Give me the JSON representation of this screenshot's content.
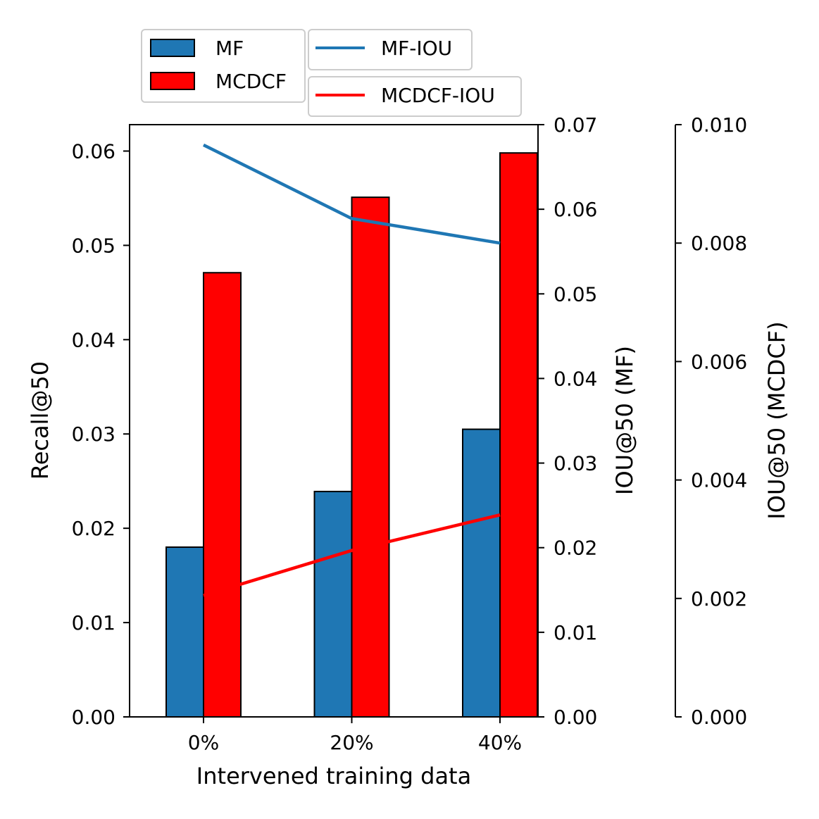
{
  "chart_data": {
    "type": "bar",
    "categories": [
      "0%",
      "20%",
      "40%"
    ],
    "xlabel": "Intervened training data",
    "bar_series": [
      {
        "name": "MF",
        "axis": "left",
        "color": "#1f77b4",
        "values": [
          0.018,
          0.0239,
          0.0305
        ]
      },
      {
        "name": "MCDCF",
        "axis": "left",
        "color": "#ff0000",
        "values": [
          0.0471,
          0.0551,
          0.0598
        ]
      }
    ],
    "line_series": [
      {
        "name": "MF-IOU",
        "axis": "right1",
        "color": "#1f77b4",
        "values": [
          0.0676,
          0.0589,
          0.056
        ]
      },
      {
        "name": "MCDCF-IOU",
        "axis": "right2",
        "color": "#ff0000",
        "values": [
          0.00205,
          0.00281,
          0.00341
        ]
      }
    ],
    "axes": {
      "left": {
        "label": "Recall@50",
        "ylim": [
          0,
          0.0628
        ],
        "ticks": [
          0,
          0.01,
          0.02,
          0.03,
          0.04,
          0.05,
          0.06
        ],
        "tick_labels": [
          "0.00",
          "0.01",
          "0.02",
          "0.03",
          "0.04",
          "0.05",
          "0.06"
        ]
      },
      "right1": {
        "label": "IOU@50 (MF)",
        "ylim": [
          0,
          0.07
        ],
        "ticks": [
          0,
          0.01,
          0.02,
          0.03,
          0.04,
          0.05,
          0.06,
          0.07
        ],
        "tick_labels": [
          "0.00",
          "0.01",
          "0.02",
          "0.03",
          "0.04",
          "0.05",
          "0.06",
          "0.07"
        ]
      },
      "right2": {
        "label": "IOU@50 (MCDCF)",
        "ylim": [
          0,
          0.01
        ],
        "ticks": [
          0,
          0.002,
          0.004,
          0.006,
          0.008,
          0.01
        ],
        "tick_labels": [
          "0.000",
          "0.002",
          "0.004",
          "0.006",
          "0.008",
          "0.010"
        ]
      }
    },
    "legends": [
      {
        "placement": "top-left",
        "entries": [
          "MF",
          "MCDCF"
        ]
      },
      {
        "placement": "top-center",
        "entries": [
          "MF-IOU"
        ]
      },
      {
        "placement": "top-center",
        "entries": [
          "MCDCF-IOU"
        ]
      }
    ],
    "grid": false
  }
}
